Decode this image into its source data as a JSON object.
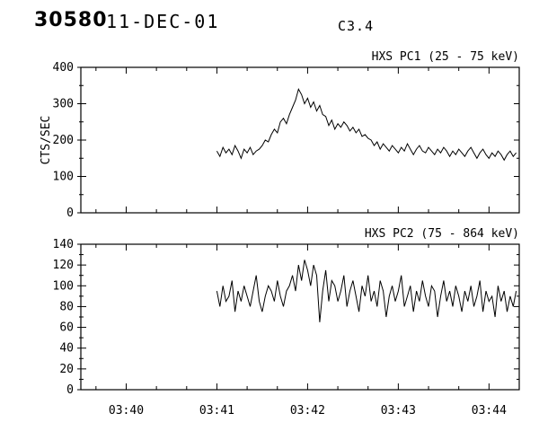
{
  "header": {
    "event_number": "30580",
    "date": "11-DEC-01",
    "goes_class": "C3.4"
  },
  "colors": {
    "foreground": "#000000",
    "background": "#ffffff"
  },
  "x_axis": {
    "range_sec": [
      -30,
      260
    ],
    "minor_step_sec": 20,
    "ticks": [
      {
        "sec": 0,
        "label": "03:40"
      },
      {
        "sec": 60,
        "label": "03:41"
      },
      {
        "sec": 120,
        "label": "03:42"
      },
      {
        "sec": 180,
        "label": "03:43"
      },
      {
        "sec": 240,
        "label": "03:44"
      }
    ]
  },
  "chart_data": [
    {
      "type": "line",
      "title": "HXS PC1 (25 - 75 keV)",
      "ylabel": "CTS/SEC",
      "xlabel": "",
      "ylim": [
        0,
        400
      ],
      "yticks": [
        0,
        100,
        200,
        300,
        400
      ],
      "y_minor_step": 50,
      "t0_sec": 60,
      "dt_sec": 2,
      "values": [
        170,
        155,
        180,
        165,
        175,
        160,
        185,
        170,
        150,
        175,
        165,
        180,
        160,
        170,
        175,
        185,
        200,
        195,
        215,
        230,
        220,
        250,
        260,
        245,
        270,
        290,
        310,
        340,
        325,
        300,
        315,
        290,
        305,
        280,
        295,
        270,
        265,
        240,
        255,
        230,
        245,
        235,
        250,
        240,
        225,
        235,
        220,
        230,
        210,
        215,
        205,
        200,
        185,
        195,
        175,
        190,
        180,
        170,
        185,
        175,
        165,
        180,
        170,
        190,
        175,
        160,
        175,
        185,
        170,
        165,
        180,
        170,
        160,
        175,
        165,
        180,
        170,
        155,
        170,
        160,
        175,
        165,
        155,
        170,
        180,
        165,
        150,
        165,
        175,
        160,
        150,
        165,
        155,
        170,
        160,
        145,
        160,
        170,
        155,
        165
      ]
    },
    {
      "type": "line",
      "title": "HXS PC2 (75 - 864 keV)",
      "ylabel": "",
      "xlabel": "",
      "ylim": [
        0,
        140
      ],
      "yticks": [
        0,
        20,
        40,
        60,
        80,
        100,
        120,
        140
      ],
      "y_minor_step": 10,
      "t0_sec": 60,
      "dt_sec": 2,
      "values": [
        95,
        80,
        100,
        85,
        90,
        105,
        75,
        95,
        85,
        100,
        90,
        80,
        95,
        110,
        85,
        75,
        90,
        100,
        95,
        85,
        105,
        90,
        80,
        95,
        100,
        110,
        95,
        120,
        105,
        125,
        115,
        100,
        120,
        110,
        65,
        95,
        115,
        85,
        105,
        100,
        85,
        95,
        110,
        80,
        95,
        105,
        90,
        75,
        100,
        90,
        110,
        85,
        95,
        80,
        105,
        95,
        70,
        90,
        100,
        85,
        95,
        110,
        80,
        90,
        100,
        75,
        95,
        85,
        105,
        90,
        80,
        100,
        95,
        70,
        90,
        105,
        85,
        95,
        80,
        100,
        90,
        75,
        95,
        85,
        100,
        80,
        90,
        105,
        75,
        95,
        85,
        90,
        70,
        100,
        85,
        95,
        75,
        90,
        80,
        95
      ]
    }
  ]
}
